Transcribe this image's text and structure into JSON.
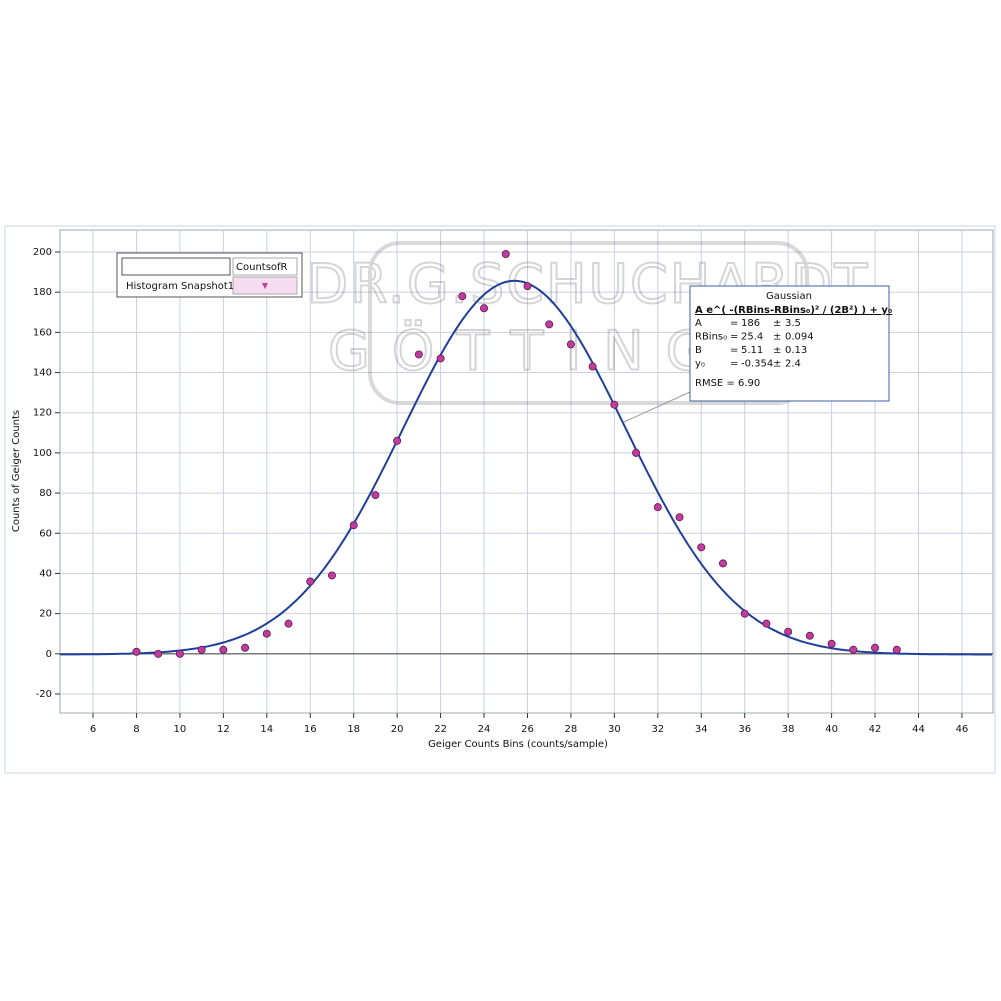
{
  "chart_data": {
    "type": "scatter",
    "xlabel": "Geiger Counts Bins (counts/sample)",
    "ylabel": "Counts of Geiger Counts",
    "xlim": [
      4.48,
      47.43
    ],
    "ylim": [
      -29.46,
      210.95
    ],
    "xticks": [
      6,
      8,
      10,
      12,
      14,
      16,
      18,
      20,
      22,
      24,
      26,
      28,
      30,
      32,
      34,
      36,
      38,
      40,
      42,
      44,
      46
    ],
    "yticks": [
      -20,
      0,
      20,
      40,
      60,
      80,
      100,
      120,
      140,
      160,
      180,
      200
    ],
    "grid": true,
    "series": [
      {
        "name": "Histogram Snapshot1",
        "column": "CountsofR",
        "color": "#c23b9e",
        "x": [
          8,
          9,
          10,
          11,
          12,
          13,
          14,
          15,
          16,
          17,
          18,
          19,
          20,
          21,
          22,
          23,
          24,
          25,
          26,
          27,
          28,
          29,
          30,
          31,
          32,
          33,
          34,
          35,
          36,
          37,
          38,
          39,
          40,
          41,
          42,
          43
        ],
        "values": [
          1,
          0,
          0,
          2,
          2,
          3,
          10,
          15,
          36,
          39,
          64,
          79,
          106,
          149,
          147,
          178,
          172,
          199,
          183,
          164,
          154,
          143,
          124,
          100,
          73,
          68,
          53,
          45,
          20,
          15,
          11,
          9,
          5,
          2,
          3,
          2
        ]
      }
    ],
    "fit": {
      "title": "Gaussian",
      "formula": "A e^( -(RBins-RBins₀)² / (2B²) ) + y₀",
      "color": "#1f3f99",
      "eq": "=",
      "pm": "±",
      "params": [
        {
          "name": "A",
          "value": 186,
          "error": 3.5
        },
        {
          "name": "RBins₀",
          "value": 25.4,
          "error": 0.094
        },
        {
          "name": "B",
          "value": 5.11,
          "error": 0.13
        },
        {
          "name": "y₀",
          "value": -0.354,
          "error": 2.4
        }
      ],
      "rmse": "RMSE = 6.90"
    },
    "watermark": [
      "DR.G.SCHUCHARDT",
      "GÖTTINGEN"
    ]
  }
}
